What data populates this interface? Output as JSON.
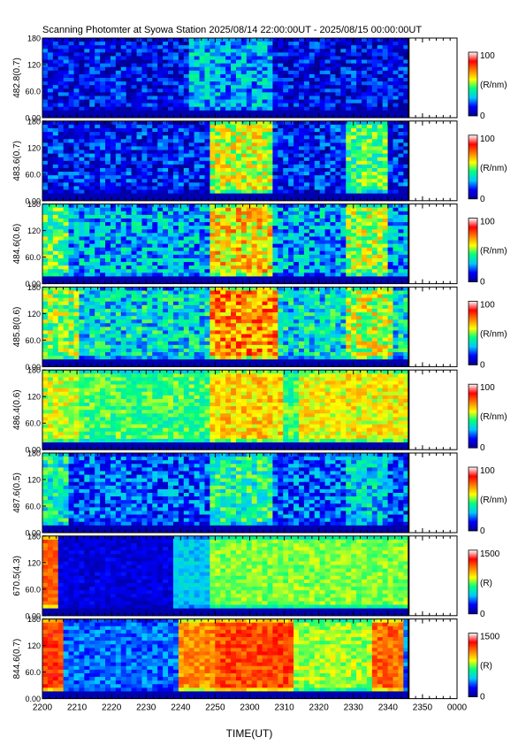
{
  "chart_data": {
    "type": "heatmap",
    "title": "Scanning Photomter at Syowa Station 2025/08/14 22:00:00UT - 2025/08/15 00:00:00UT",
    "xlabel": "TIME(UT)",
    "x_tick_labels": [
      "2200",
      "2210",
      "2220",
      "2230",
      "2240",
      "2250",
      "2300",
      "2310",
      "2320",
      "2330",
      "2340",
      "2350",
      "0000"
    ],
    "x_range_minutes": [
      0,
      120
    ],
    "data_end_minutes": 106,
    "y_range_deg": [
      0,
      180
    ],
    "y_tick_labels": [
      "0.00",
      "60.0",
      "120",
      "180"
    ],
    "colormap": [
      "#00008c",
      "#0000ff",
      "#00c8ff",
      "#00ff80",
      "#ffff00",
      "#ff8000",
      "#ff0000",
      "#ffffff"
    ],
    "panels": [
      {
        "ylabel": "482.8(0.7)",
        "cbar_max": "100",
        "cbar_min": "0",
        "cbar_unit": "(R/nm)",
        "colorbar_colors": [
          "#00008c",
          "#0000ff",
          "#00c8ff",
          "#00ff80",
          "#ffff00",
          "#ff8000",
          "#ff0000",
          "#ffffff"
        ],
        "base_level": 0.12,
        "noise": 0.14,
        "features": [
          {
            "t0": 42,
            "t1": 52,
            "level": 0.3
          },
          {
            "t0": 50,
            "t1": 66,
            "level": 0.28
          }
        ]
      },
      {
        "ylabel": "483.6(0.7)",
        "cbar_max": "100",
        "cbar_min": "0",
        "cbar_unit": "(R/nm)",
        "base_level": 0.14,
        "noise": 0.14,
        "features": [
          {
            "t0": 48,
            "t1": 66,
            "level": 0.55
          },
          {
            "t0": 88,
            "t1": 100,
            "level": 0.45
          }
        ]
      },
      {
        "ylabel": "484.6(0.6)",
        "cbar_max": "100",
        "cbar_min": "0",
        "cbar_unit": "(R/nm)",
        "base_level": 0.28,
        "noise": 0.16,
        "features": [
          {
            "t0": 48,
            "t1": 66,
            "level": 0.62
          },
          {
            "t0": 88,
            "t1": 100,
            "level": 0.52
          },
          {
            "t0": 0,
            "t1": 8,
            "level": 0.45
          }
        ]
      },
      {
        "ylabel": "485.8(0.6)",
        "cbar_max": "100",
        "cbar_min": "0",
        "cbar_unit": "(R/nm)",
        "base_level": 0.34,
        "noise": 0.16,
        "features": [
          {
            "t0": 48,
            "t1": 68,
            "level": 0.7
          },
          {
            "t0": 88,
            "t1": 102,
            "level": 0.55
          },
          {
            "t0": 0,
            "t1": 10,
            "level": 0.5
          }
        ]
      },
      {
        "ylabel": "486.4(0.6)",
        "cbar_max": "100",
        "cbar_min": "0",
        "cbar_unit": "(R/nm)",
        "base_level": 0.45,
        "noise": 0.1,
        "features": [
          {
            "t0": 48,
            "t1": 70,
            "level": 0.62
          },
          {
            "t0": 74,
            "t1": 106,
            "level": 0.58
          },
          {
            "t0": 0,
            "t1": 10,
            "level": 0.55
          }
        ]
      },
      {
        "ylabel": "487.6(0.5)",
        "cbar_max": "100",
        "cbar_min": "0",
        "cbar_unit": "(R/nm)",
        "base_level": 0.2,
        "noise": 0.14,
        "features": [
          {
            "t0": 48,
            "t1": 66,
            "level": 0.4
          },
          {
            "t0": 88,
            "t1": 100,
            "level": 0.32
          },
          {
            "t0": 0,
            "t1": 8,
            "level": 0.38
          }
        ]
      },
      {
        "ylabel": "670.5(4.3)",
        "cbar_max": "1500",
        "cbar_min": "0",
        "cbar_unit": "(R)",
        "base_level": 0.1,
        "noise": 0.06,
        "features": [
          {
            "t0": 48,
            "t1": 106,
            "level": 0.5
          },
          {
            "t0": 0,
            "t1": 4,
            "level": 0.75
          },
          {
            "t0": 38,
            "t1": 48,
            "level": 0.3
          }
        ]
      },
      {
        "ylabel": "844.6(0.7)",
        "cbar_max": "1500",
        "cbar_min": "0",
        "cbar_unit": "(R)",
        "base_level": 0.22,
        "noise": 0.08,
        "features": [
          {
            "t0": 50,
            "t1": 72,
            "level": 0.78
          },
          {
            "t0": 40,
            "t1": 50,
            "level": 0.7
          },
          {
            "t0": 96,
            "t1": 104,
            "level": 0.74
          },
          {
            "t0": 0,
            "t1": 6,
            "level": 0.8
          },
          {
            "t0": 72,
            "t1": 96,
            "level": 0.52
          }
        ]
      }
    ]
  }
}
